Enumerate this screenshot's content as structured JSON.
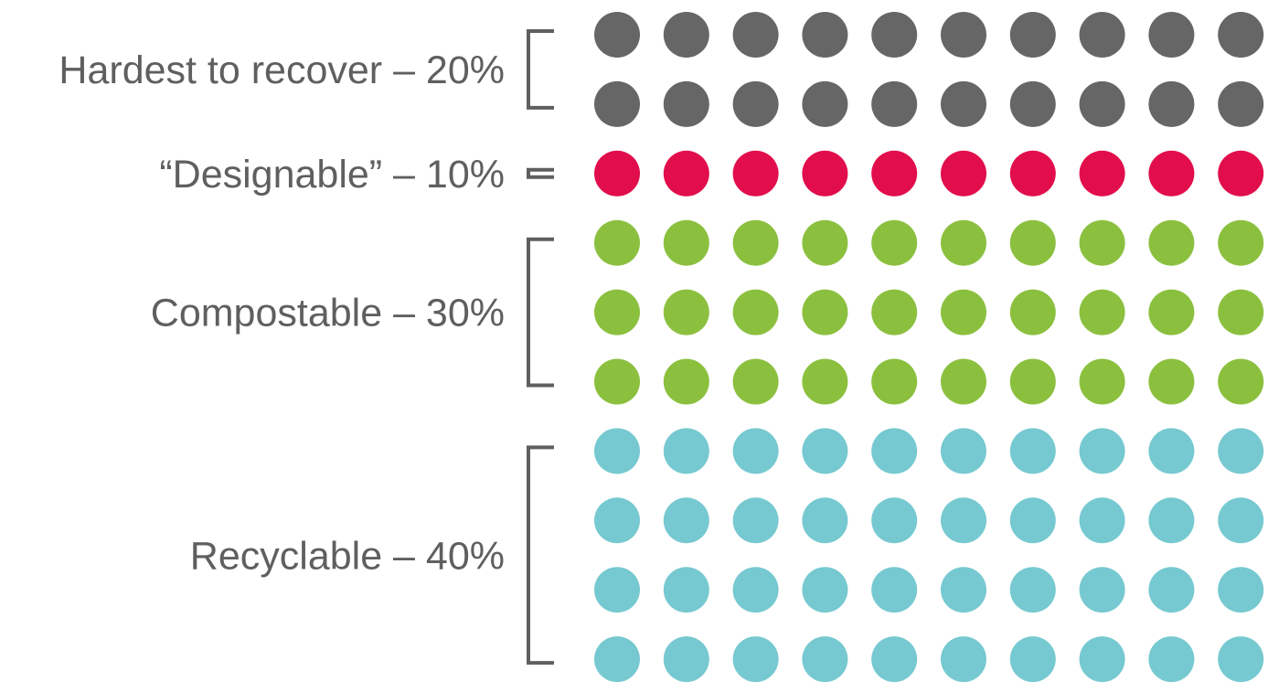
{
  "chart_data": {
    "type": "waffle",
    "units_total": 100,
    "columns": 10,
    "groups": [
      {
        "label": "Hardest to recover – 20%",
        "name": "Hardest to recover",
        "percent": 20,
        "color": "#666666"
      },
      {
        "label": "“Designable” – 10%",
        "name": "“Designable”",
        "percent": 10,
        "color": "#e10e4b"
      },
      {
        "label": "Compostable – 30%",
        "name": "Compostable",
        "percent": 30,
        "color": "#8bc03f"
      },
      {
        "label": "Recyclable – 40%",
        "name": "Recyclable",
        "percent": 40,
        "color": "#76c9d0"
      }
    ]
  }
}
